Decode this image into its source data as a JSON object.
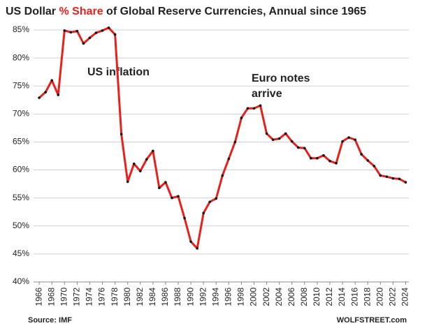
{
  "chart_data": {
    "type": "line",
    "title": [
      "US Dollar ",
      "% Share",
      " of Global Reserve Currencies, Annual since 1965"
    ],
    "title_highlight_color": "#e8201c",
    "annotations": [
      "US inflation",
      "Euro notes",
      "arrive"
    ],
    "annotation_color": "#1ea3d6",
    "source": "Source: IMF",
    "credit": "WOLFSTREET.com",
    "x": [
      1966,
      1967,
      1968,
      1969,
      1970,
      1971,
      1972,
      1973,
      1974,
      1975,
      1976,
      1977,
      1978,
      1979,
      1980,
      1981,
      1982,
      1983,
      1984,
      1985,
      1986,
      1987,
      1988,
      1989,
      1990,
      1991,
      1992,
      1993,
      1994,
      1995,
      1996,
      1997,
      1998,
      1999,
      2000,
      2001,
      2002,
      2003,
      2004,
      2005,
      2006,
      2007,
      2008,
      2009,
      2010,
      2011,
      2012,
      2013,
      2014,
      2015,
      2016,
      2017,
      2018,
      2019,
      2020,
      2021,
      2022,
      2023,
      2024
    ],
    "series": [
      {
        "name": "US Dollar share",
        "color": "#e8201c",
        "marker_color": "#111111",
        "values": [
          72.9,
          73.9,
          76,
          73.4,
          84.9,
          84.6,
          84.8,
          82.6,
          83.6,
          84.5,
          84.9,
          85.4,
          84.2,
          66.4,
          57.9,
          61.1,
          59.8,
          61.9,
          63.4,
          56.8,
          57.8,
          55,
          55.3,
          51.4,
          47.2,
          46,
          52.3,
          54.3,
          54.9,
          59,
          62,
          65,
          69.3,
          71,
          71,
          71.5,
          66.5,
          65.4,
          65.6,
          66.5,
          65.1,
          64,
          63.9,
          62.1,
          62.1,
          62.6,
          61.6,
          61.2,
          65.1,
          65.8,
          65.4,
          62.8,
          61.7,
          60.7,
          59,
          58.8,
          58.5,
          58.4,
          57.8
        ]
      }
    ],
    "xlim": [
      1965.1,
      2024.5
    ],
    "xticks": [
      1966,
      1968,
      1970,
      1972,
      1974,
      1976,
      1978,
      1980,
      1982,
      1984,
      1986,
      1988,
      1990,
      1992,
      1994,
      1996,
      1998,
      2000,
      2002,
      2004,
      2006,
      2008,
      2010,
      2012,
      2014,
      2016,
      2018,
      2020,
      2022,
      2024
    ],
    "ylim": [
      40,
      85
    ],
    "yticks": [
      {
        "value": 40,
        "label": "40%"
      },
      {
        "value": 45,
        "label": "45%"
      },
      {
        "value": 50,
        "label": "50%"
      },
      {
        "value": 55,
        "label": "55%"
      },
      {
        "value": 60,
        "label": "60%"
      },
      {
        "value": 65,
        "label": "65%"
      },
      {
        "value": 70,
        "label": "70%"
      },
      {
        "value": 75,
        "label": "75%"
      },
      {
        "value": 80,
        "label": "80%"
      },
      {
        "value": 85,
        "label": "85%"
      }
    ],
    "grid": true
  }
}
